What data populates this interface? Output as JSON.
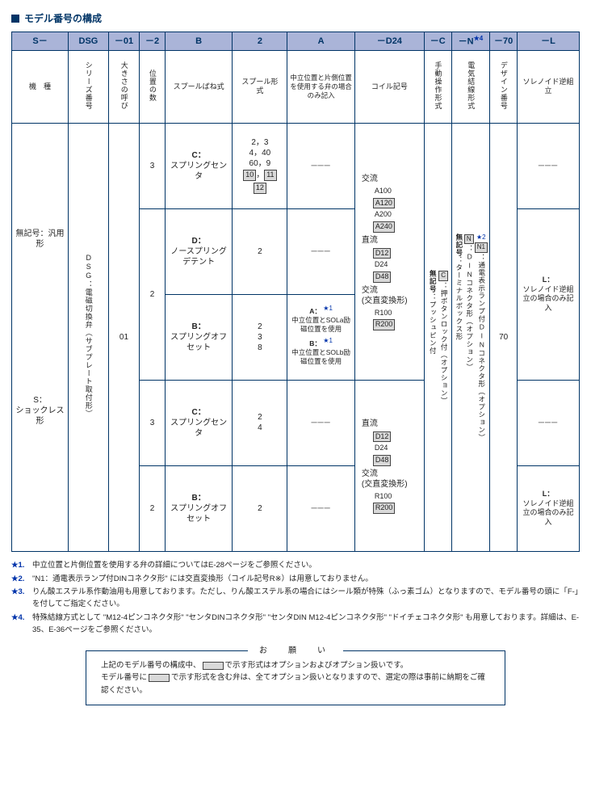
{
  "title": "モデル番号の構成",
  "header_codes": [
    "S－",
    "DSG",
    "－01",
    "－2",
    "B",
    "2",
    "A",
    "－D24",
    "－C",
    "－N",
    "－70",
    "－L"
  ],
  "header_star_idx": 9,
  "header_star": "★4",
  "hdr2": {
    "c0": "機　種",
    "c1": "シリーズ番号",
    "c2": "大きさの呼び",
    "c3": "位置の数",
    "c4": "スプールばね式",
    "c5": "スプール形　式",
    "c6": "中立位置と片側位置を使用する弁の場合のみ記入",
    "c7": "コイル記号",
    "c8": "手動操作形式",
    "c9": "電気結線形式",
    "c10": "デザイン番号",
    "c11": "ソレノイド逆組立"
  },
  "col0": {
    "top": "無記号：汎用形",
    "bottom_prefix": "S：",
    "bottom": "ショックレス形"
  },
  "col1": "DSG：電磁切換弁（サブプレート取付形）",
  "col2": "01",
  "rows": [
    {
      "pos": "3",
      "spool": "C：\nスプリングセンタ",
      "sp2": "2，3\n4，40\n60，9",
      "sp2_boxed": [
        "10",
        "11",
        "12"
      ],
      "a": "───",
      "l": "───"
    },
    {
      "pos": "2",
      "spool": "D：\nノースプリングデテント",
      "sp2": "2",
      "a": "───"
    },
    {
      "pos": "",
      "spool": "B：\nスプリングオフセット",
      "sp2": "2\n3\n8",
      "a_lines": [
        {
          "key": "A：",
          "star": "★1",
          "txt": "中立位置とSOLa励磁位置を使用"
        },
        {
          "key": "B：",
          "star": "★1",
          "txt": "中立位置とSOLb励磁位置を使用"
        }
      ],
      "l_prefix": "L：",
      "l": "ソレノイド逆組立の場合のみ記入"
    },
    {
      "pos": "3",
      "spool": "C：\nスプリングセンタ",
      "sp2": "2\n4",
      "a": "───",
      "l": "───"
    },
    {
      "pos": "2",
      "spool": "B：\nスプリングオフセット",
      "sp2": "2",
      "a": "───",
      "l_prefix": "L：",
      "l": "ソレノイド逆組立の場合のみ記入"
    }
  ],
  "coil_top": {
    "groups": [
      {
        "label": "交流",
        "items": [
          {
            "v": "A100"
          },
          {
            "v": "A120",
            "boxed": true
          },
          {
            "v": "A200"
          },
          {
            "v": "A240",
            "boxed": true
          }
        ]
      },
      {
        "label": "直流",
        "items": [
          {
            "v": "D12",
            "boxed": true
          },
          {
            "v": "D24"
          },
          {
            "v": "D48",
            "boxed": true
          }
        ]
      },
      {
        "label": "交流\n(交直変換形)",
        "items": [
          {
            "v": "R100"
          },
          {
            "v": "R200",
            "boxed": true
          }
        ]
      }
    ]
  },
  "coil_bottom": {
    "groups": [
      {
        "label": "直流",
        "items": [
          {
            "v": "D12",
            "boxed": true
          },
          {
            "v": "D24"
          },
          {
            "v": "D48",
            "boxed": true
          }
        ]
      },
      {
        "label": "交流\n(交直変換形)",
        "items": [
          {
            "v": "R100"
          },
          {
            "v": "R200",
            "boxed": true
          }
        ]
      }
    ]
  },
  "c_col": [
    {
      "key": "無記号",
      "txt": "：プッシュピン付"
    },
    {
      "key": "C",
      "boxed": true,
      "txt": "：押ボタンロック付（オプション）"
    }
  ],
  "n_col": [
    {
      "key": "無記号",
      "txt": "：ターミナルボックス形"
    },
    {
      "key": "N",
      "boxed": true,
      "txt": "：DINコネクタ形（オプション）"
    },
    {
      "key": "N1",
      "boxed": true,
      "star": "★2",
      "txt": "：通電表示ランプ付DINコネクタ形（オプション）"
    }
  ],
  "design_no": "70",
  "notes": [
    {
      "k": "★1.",
      "t": "中立位置と片側位置を使用する弁の詳細についてはE-28ページをご参照ください。"
    },
    {
      "k": "★2.",
      "t": "\"N1：通電表示ランプ付DINコネクタ形\" には交直変換形（コイル記号R※）は用意しておりません。"
    },
    {
      "k": "★3.",
      "t": "りん酸エステル系作動油用も用意しております。ただし、りん酸エステル系の場合にはシール類が特殊（ふっ素ゴム）となりますので、モデル番号の頭に「F-」を付してご指定ください。"
    },
    {
      "k": "★4.",
      "t": "特殊結線方式として \"M12-4ピンコネクタ形\" \"センタDINコネクタ形\" \"センタDIN M12-4ピンコネクタ形\" \"ドイチェコネクタ形\" も用意しております。詳細は、E-35、E-36ページをご参照ください。"
    }
  ],
  "request": {
    "title": "お　願　い",
    "l1a": "上記のモデル番号の構成中、",
    "l1b": "で示す形式はオプションおよびオプション扱いです。",
    "l2a": "モデル番号に",
    "l2b": "で示す形式を含む弁は、全てオプション扱いとなりますので、選定の際は事前に納期をご確認ください。"
  }
}
